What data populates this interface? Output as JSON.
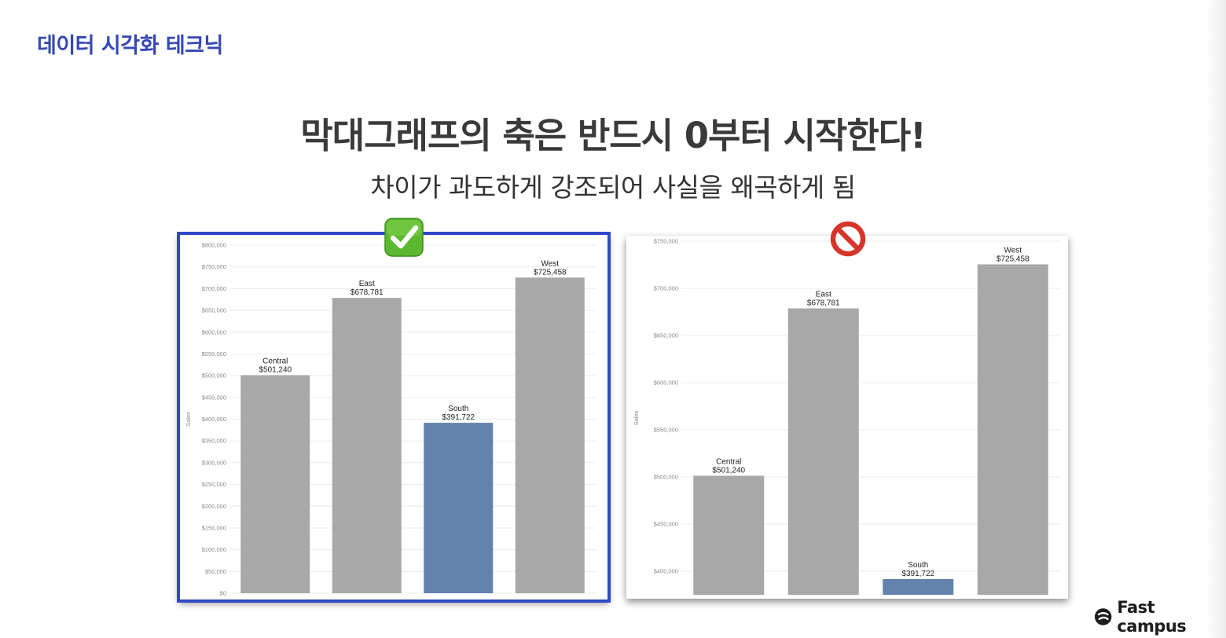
{
  "section_title": "데이터 시각화 테크닉",
  "headline": "막대그래프의 축은 반드시 0부터 시작한다!",
  "subline": "차이가 과도하게 강조되어 사실을 왜곡하게 됨",
  "brand": {
    "name": "Fast campus",
    "icon": "fastcampus-logo-icon"
  },
  "colors": {
    "bar_default": "#a8a8a8",
    "bar_highlight": "#6283ae",
    "good_border": "#3147c9",
    "section_title": "#3548b5"
  },
  "badges": {
    "good": "check-mark-icon",
    "bad": "prohibited-icon"
  },
  "chart_data": [
    {
      "type": "bar",
      "id": "good",
      "ylabel": "Sales",
      "categories": [
        "Central",
        "East",
        "South",
        "West"
      ],
      "values": [
        501240,
        678781,
        391722,
        725458
      ],
      "value_labels": [
        "$501,240",
        "$678,781",
        "$391,722",
        "$725,458"
      ],
      "highlight": "South",
      "ylim": [
        0,
        800000
      ],
      "yticks": [
        0,
        50000,
        100000,
        150000,
        200000,
        250000,
        300000,
        350000,
        400000,
        450000,
        500000,
        550000,
        600000,
        650000,
        700000,
        750000,
        800000
      ],
      "ytick_labels": [
        "$0",
        "$50,000",
        "$100,000",
        "$150,000",
        "$200,000",
        "$250,000",
        "$300,000",
        "$350,000",
        "$400,000",
        "$450,000",
        "$500,000",
        "$550,000",
        "$600,000",
        "$650,000",
        "$700,000",
        "$750,000",
        "$800,000"
      ],
      "grid": true
    },
    {
      "type": "bar",
      "id": "bad",
      "ylabel": "Sales",
      "categories": [
        "Central",
        "East",
        "South",
        "West"
      ],
      "values": [
        501240,
        678781,
        391722,
        725458
      ],
      "value_labels": [
        "$501,240",
        "$678,781",
        "$391,722",
        "$725,458"
      ],
      "highlight": "South",
      "ylim": [
        375000,
        750000
      ],
      "yticks": [
        400000,
        450000,
        500000,
        550000,
        600000,
        650000,
        700000,
        750000
      ],
      "ytick_labels": [
        "$400,000",
        "$450,000",
        "$500,000",
        "$550,000",
        "$600,000",
        "$650,000",
        "$700,000",
        "$750,000"
      ],
      "grid": true
    }
  ]
}
